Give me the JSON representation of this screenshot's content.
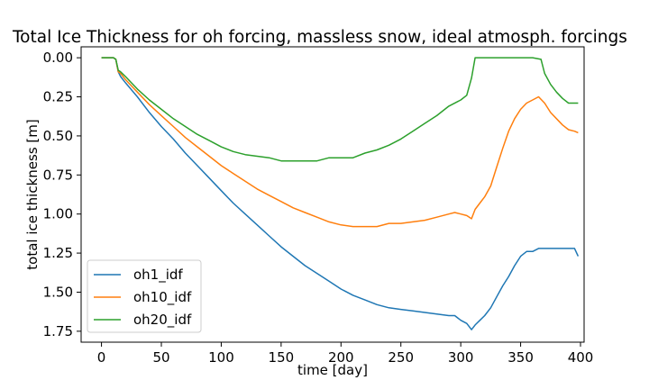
{
  "chart_data": {
    "type": "line",
    "title": "Total Ice Thickness for oh forcing, massless snow, ideal atmosph. forcings",
    "xlabel": "time [day]",
    "ylabel": "total ice thickness [m]",
    "xlim": [
      -17,
      403
    ],
    "ylim": [
      1.82,
      -0.07
    ],
    "y_inverted": true,
    "x_ticks": [
      0,
      50,
      100,
      150,
      200,
      250,
      300,
      350,
      400
    ],
    "x_tick_labels": [
      "0",
      "50",
      "100",
      "150",
      "200",
      "250",
      "300",
      "350",
      "400"
    ],
    "y_ticks": [
      0.0,
      0.25,
      0.5,
      0.75,
      1.0,
      1.25,
      1.5,
      1.75
    ],
    "y_tick_labels": [
      "0.00",
      "0.25",
      "0.50",
      "0.75",
      "1.00",
      "1.25",
      "1.50",
      "1.75"
    ],
    "grid": false,
    "legend_position": "lower-left",
    "series": [
      {
        "name": "oh1_idf",
        "color": "#1f77b4",
        "points": [
          [
            0,
            0
          ],
          [
            10,
            0
          ],
          [
            12,
            0.01
          ],
          [
            14,
            0.09
          ],
          [
            16,
            0.12
          ],
          [
            20,
            0.16
          ],
          [
            30,
            0.25
          ],
          [
            40,
            0.35
          ],
          [
            50,
            0.44
          ],
          [
            60,
            0.52
          ],
          [
            70,
            0.61
          ],
          [
            80,
            0.69
          ],
          [
            90,
            0.77
          ],
          [
            100,
            0.85
          ],
          [
            110,
            0.93
          ],
          [
            120,
            1.0
          ],
          [
            130,
            1.07
          ],
          [
            140,
            1.14
          ],
          [
            150,
            1.21
          ],
          [
            160,
            1.27
          ],
          [
            170,
            1.33
          ],
          [
            180,
            1.38
          ],
          [
            190,
            1.43
          ],
          [
            200,
            1.48
          ],
          [
            210,
            1.52
          ],
          [
            220,
            1.55
          ],
          [
            230,
            1.58
          ],
          [
            240,
            1.6
          ],
          [
            250,
            1.61
          ],
          [
            260,
            1.62
          ],
          [
            270,
            1.63
          ],
          [
            280,
            1.64
          ],
          [
            290,
            1.65
          ],
          [
            295,
            1.65
          ],
          [
            300,
            1.68
          ],
          [
            305,
            1.7
          ],
          [
            309,
            1.74
          ],
          [
            312,
            1.71
          ],
          [
            316,
            1.68
          ],
          [
            320,
            1.65
          ],
          [
            325,
            1.6
          ],
          [
            330,
            1.53
          ],
          [
            335,
            1.46
          ],
          [
            340,
            1.4
          ],
          [
            345,
            1.33
          ],
          [
            350,
            1.27
          ],
          [
            355,
            1.24
          ],
          [
            360,
            1.24
          ],
          [
            365,
            1.22
          ],
          [
            370,
            1.22
          ],
          [
            380,
            1.22
          ],
          [
            390,
            1.22
          ],
          [
            395,
            1.22
          ],
          [
            398,
            1.27
          ]
        ]
      },
      {
        "name": "oh10_idf",
        "color": "#ff7f0e",
        "points": [
          [
            0,
            0
          ],
          [
            10,
            0
          ],
          [
            12,
            0.01
          ],
          [
            14,
            0.09
          ],
          [
            16,
            0.1
          ],
          [
            20,
            0.14
          ],
          [
            30,
            0.22
          ],
          [
            40,
            0.3
          ],
          [
            50,
            0.37
          ],
          [
            60,
            0.44
          ],
          [
            70,
            0.51
          ],
          [
            80,
            0.57
          ],
          [
            90,
            0.63
          ],
          [
            100,
            0.69
          ],
          [
            110,
            0.74
          ],
          [
            120,
            0.79
          ],
          [
            130,
            0.84
          ],
          [
            140,
            0.88
          ],
          [
            150,
            0.92
          ],
          [
            160,
            0.96
          ],
          [
            170,
            0.99
          ],
          [
            180,
            1.02
          ],
          [
            190,
            1.05
          ],
          [
            200,
            1.07
          ],
          [
            210,
            1.08
          ],
          [
            220,
            1.08
          ],
          [
            230,
            1.08
          ],
          [
            240,
            1.06
          ],
          [
            250,
            1.06
          ],
          [
            260,
            1.05
          ],
          [
            270,
            1.04
          ],
          [
            280,
            1.02
          ],
          [
            290,
            1.0
          ],
          [
            295,
            0.99
          ],
          [
            300,
            1.0
          ],
          [
            305,
            1.01
          ],
          [
            309,
            1.03
          ],
          [
            312,
            0.97
          ],
          [
            316,
            0.93
          ],
          [
            320,
            0.89
          ],
          [
            325,
            0.82
          ],
          [
            330,
            0.7
          ],
          [
            335,
            0.58
          ],
          [
            340,
            0.47
          ],
          [
            345,
            0.39
          ],
          [
            350,
            0.33
          ],
          [
            355,
            0.29
          ],
          [
            360,
            0.27
          ],
          [
            365,
            0.25
          ],
          [
            370,
            0.29
          ],
          [
            375,
            0.35
          ],
          [
            380,
            0.39
          ],
          [
            385,
            0.43
          ],
          [
            390,
            0.46
          ],
          [
            395,
            0.47
          ],
          [
            398,
            0.48
          ]
        ]
      },
      {
        "name": "oh20_idf",
        "color": "#2ca02c",
        "points": [
          [
            0,
            0
          ],
          [
            10,
            0
          ],
          [
            12,
            0.01
          ],
          [
            14,
            0.08
          ],
          [
            16,
            0.09
          ],
          [
            20,
            0.12
          ],
          [
            30,
            0.2
          ],
          [
            40,
            0.27
          ],
          [
            50,
            0.33
          ],
          [
            60,
            0.39
          ],
          [
            70,
            0.44
          ],
          [
            80,
            0.49
          ],
          [
            90,
            0.53
          ],
          [
            100,
            0.57
          ],
          [
            110,
            0.6
          ],
          [
            120,
            0.62
          ],
          [
            130,
            0.63
          ],
          [
            140,
            0.64
          ],
          [
            150,
            0.66
          ],
          [
            160,
            0.66
          ],
          [
            170,
            0.66
          ],
          [
            180,
            0.66
          ],
          [
            190,
            0.64
          ],
          [
            200,
            0.64
          ],
          [
            210,
            0.64
          ],
          [
            220,
            0.61
          ],
          [
            230,
            0.59
          ],
          [
            240,
            0.56
          ],
          [
            250,
            0.52
          ],
          [
            260,
            0.47
          ],
          [
            270,
            0.42
          ],
          [
            280,
            0.37
          ],
          [
            290,
            0.31
          ],
          [
            300,
            0.27
          ],
          [
            305,
            0.24
          ],
          [
            309,
            0.13
          ],
          [
            312,
            0.0
          ],
          [
            320,
            0.0
          ],
          [
            330,
            0.0
          ],
          [
            340,
            0.0
          ],
          [
            350,
            0.0
          ],
          [
            360,
            0.0
          ],
          [
            367,
            0.01
          ],
          [
            370,
            0.1
          ],
          [
            375,
            0.17
          ],
          [
            380,
            0.22
          ],
          [
            385,
            0.26
          ],
          [
            390,
            0.29
          ],
          [
            395,
            0.29
          ],
          [
            398,
            0.29
          ]
        ]
      }
    ]
  }
}
